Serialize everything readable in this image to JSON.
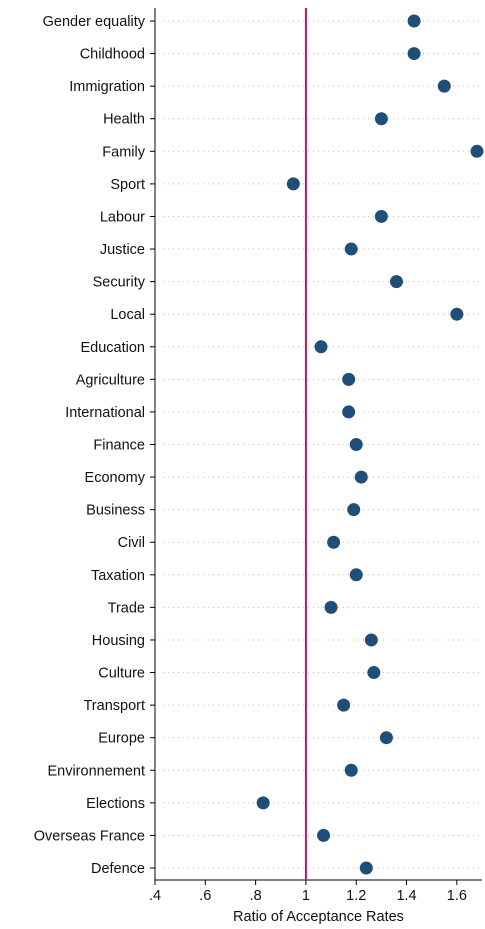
{
  "chart_data": {
    "type": "scatter",
    "orientation": "horizontal-dot-plot",
    "xlabel": "Ratio of Acceptance Rates",
    "ylabel": "",
    "xlim": [
      0.4,
      1.7
    ],
    "xticks": [
      0.4,
      0.6,
      0.8,
      1.0,
      1.2,
      1.4,
      1.6
    ],
    "xtick_labels": [
      ".4",
      ".6",
      ".8",
      "1",
      "1.2",
      "1.4",
      "1.6"
    ],
    "reference_line": 1.0,
    "grid": false,
    "categories": [
      "Gender equality",
      "Childhood",
      "Immigration",
      "Health",
      "Family",
      "Sport",
      "Labour",
      "Justice",
      "Security",
      "Local",
      "Education",
      "Agriculture",
      "International",
      "Finance",
      "Economy",
      "Business",
      "Civil",
      "Taxation",
      "Trade",
      "Housing",
      "Culture",
      "Transport",
      "Europe",
      "Environnement",
      "Elections",
      "Overseas France",
      "Defence"
    ],
    "values": [
      1.43,
      1.43,
      1.55,
      1.3,
      1.68,
      0.95,
      1.3,
      1.18,
      1.36,
      1.6,
      1.06,
      1.17,
      1.17,
      1.2,
      1.22,
      1.19,
      1.11,
      1.2,
      1.1,
      1.26,
      1.27,
      1.15,
      1.32,
      1.18,
      0.83,
      1.07,
      1.24
    ],
    "colors": {
      "marker": "#1f4e79",
      "reference_line": "#c2185b",
      "axis": "#000000",
      "guide": "#bbbbbb"
    }
  }
}
